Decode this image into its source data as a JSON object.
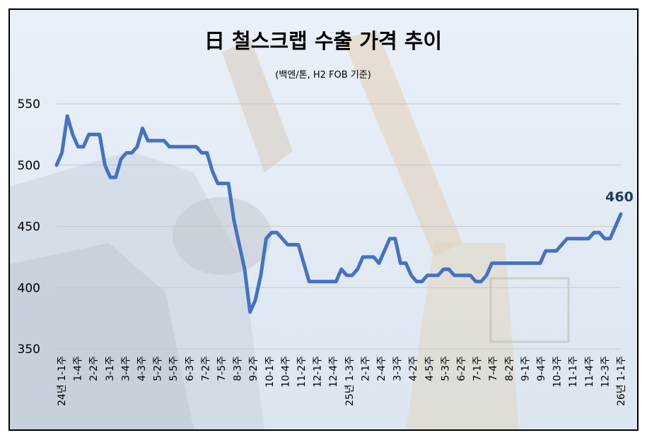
{
  "chart_data": {
    "type": "line",
    "title": "日 철스크랩 수출 가격 추이",
    "subtitle": "(백엔/톤, H2 FOB 기준)",
    "ylim": [
      350,
      550
    ],
    "yticks": [
      "550",
      "500",
      "450",
      "400",
      "350"
    ],
    "grid": true,
    "line_color": "#4472c4",
    "end_label": "460",
    "end_label_color": "#1f3864",
    "x_labels": [
      "24년 1-1주",
      "1-4주",
      "2-2주",
      "3-1주",
      "3-4주",
      "4-3주",
      "5-2주",
      "5-5주",
      "6-3주",
      "7-2주",
      "7-5주",
      "8-3주",
      "9-2주",
      "10-1주",
      "10-4주",
      "11-2주",
      "12-1주",
      "12-4주",
      "25년 1-3주",
      "2-1주",
      "2-4주",
      "3-3주",
      "4-2주",
      "4-5주",
      "5-3주",
      "6-2주",
      "7-1주",
      "7-4주",
      "8-2주",
      "9-1주",
      "9-4주",
      "10-3주",
      "11-1주",
      "11-4주",
      "12-3주",
      "26년 1-1주"
    ],
    "series": [
      {
        "values": [
          500,
          510,
          540,
          525,
          515,
          515,
          525,
          525,
          525,
          500,
          490,
          490,
          505,
          510,
          510,
          515,
          530,
          520,
          520,
          520,
          520,
          515,
          515,
          515,
          515,
          515,
          515,
          510,
          510,
          495,
          485,
          485,
          485,
          455,
          435,
          415,
          380,
          390,
          410,
          440,
          445,
          445,
          440,
          435,
          435,
          435,
          420,
          405,
          405,
          405,
          405,
          405,
          405,
          415,
          410,
          410,
          415,
          425,
          425,
          425,
          420,
          430,
          440,
          440,
          420,
          420,
          410,
          405,
          405,
          410,
          410,
          410,
          415,
          415,
          410,
          410,
          410,
          410,
          405,
          405,
          410,
          420,
          420,
          420,
          420,
          420,
          420,
          420,
          420,
          420,
          420,
          430,
          430,
          430,
          435,
          440,
          440,
          440,
          440,
          440,
          445,
          445,
          440,
          440,
          450,
          460
        ]
      }
    ]
  }
}
